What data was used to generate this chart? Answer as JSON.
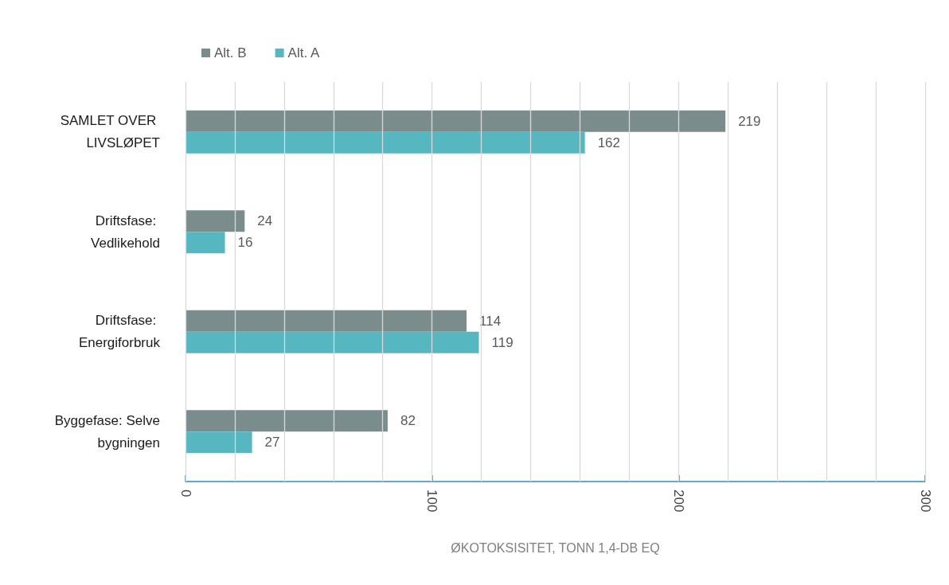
{
  "chart_data": {
    "type": "bar",
    "orientation": "horizontal",
    "categories": [
      "SAMLET OVER LIVSLØPET",
      "Driftsfase: Vedlikehold",
      "Driftsfase: Energiforbruk",
      "Byggefase: Selve bygningen"
    ],
    "series": [
      {
        "name": "Alt. B",
        "color": "#7a8c8c",
        "values": [
          219,
          24,
          114,
          82
        ]
      },
      {
        "name": "Alt. A",
        "color": "#56b7c1",
        "values": [
          162,
          16,
          119,
          27
        ]
      }
    ],
    "xlabel": "ØKOTOKSISITET, TONN 1,4-DB EQ",
    "xlim": [
      0,
      300
    ],
    "xticks": [
      0,
      {
        "value": 20,
        "label": null
      },
      {
        "value": 40,
        "label": null
      },
      {
        "value": 60,
        "label": null
      },
      {
        "value": 80,
        "label": null
      },
      100,
      {
        "value": 120,
        "label": null
      },
      {
        "value": 140,
        "label": null
      },
      {
        "value": 160,
        "label": null
      },
      {
        "value": 180,
        "label": null
      },
      200,
      {
        "value": 220,
        "label": null
      },
      {
        "value": 240,
        "label": null
      },
      {
        "value": 260,
        "label": null
      },
      {
        "value": 280,
        "label": null
      },
      300
    ],
    "grid": "x",
    "legend": "top left",
    "data_labels": true
  }
}
